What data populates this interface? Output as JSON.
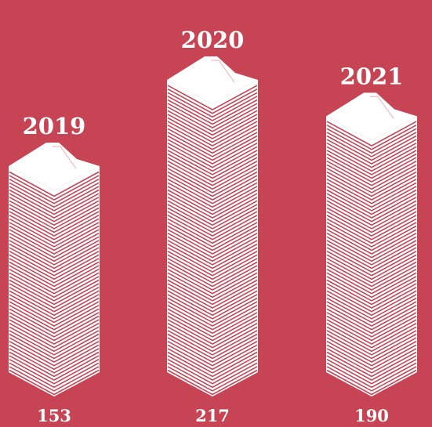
{
  "colors": {
    "background": "#C64454",
    "stack": "#FFFFFF"
  },
  "chart_data": {
    "type": "bar",
    "title": "",
    "xlabel": "",
    "ylabel": "",
    "categories": [
      "2019",
      "2020",
      "2021"
    ],
    "values": [
      153,
      217,
      190
    ],
    "ylim": [
      0,
      217
    ],
    "grid": false,
    "style": "isometric stacks of paper files"
  }
}
